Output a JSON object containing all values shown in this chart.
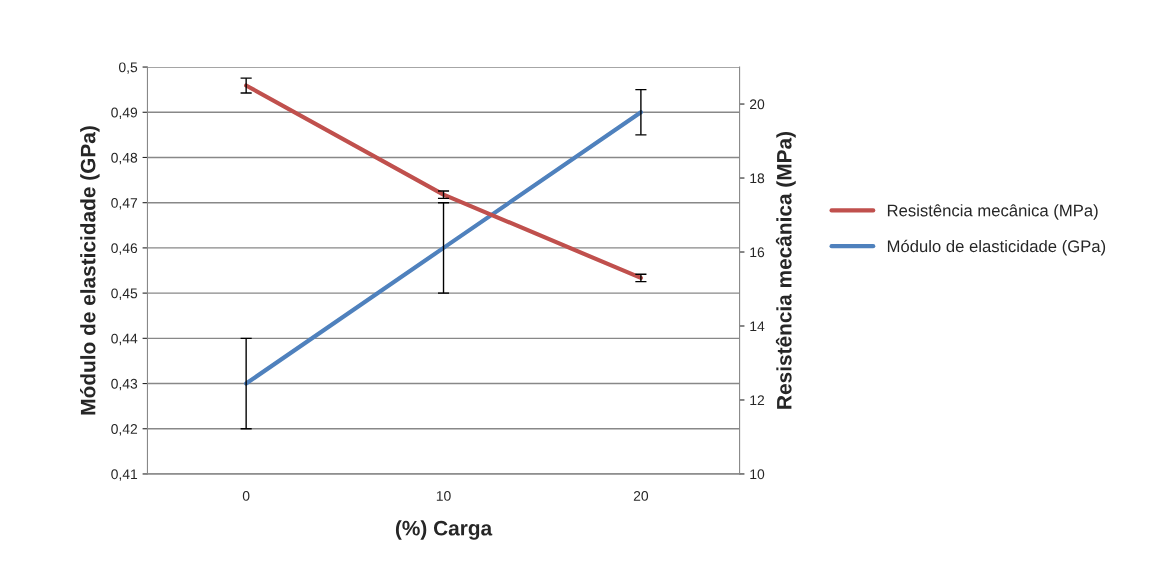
{
  "chart_data": {
    "type": "line",
    "xlabel": "(%) Carga",
    "ylabel": "Módulo de elasticidade (GPa)",
    "y2label": "Resistência mecânica (MPa)",
    "categories": [
      "0",
      "10",
      "20"
    ],
    "series": [
      {
        "name": "Resistência mecânica (MPa)",
        "color": "#c0504d",
        "axis": "y2",
        "values": [
          20.5,
          17.55,
          15.3
        ],
        "errors": [
          0.2,
          0.1,
          0.1
        ]
      },
      {
        "name": "Módulo de elasticidade (GPa)",
        "color": "#4f81bd",
        "values": [
          0.43,
          0.46,
          0.49
        ],
        "errors": [
          0.01,
          0.01,
          0.005
        ]
      }
    ],
    "ylim": [
      0.41,
      0.5
    ],
    "yticks": [
      {
        "value": 0.41,
        "label": "0,41"
      },
      {
        "value": 0.42,
        "label": "0,42"
      },
      {
        "value": 0.43,
        "label": "0,43"
      },
      {
        "value": 0.44,
        "label": "0,44"
      },
      {
        "value": 0.45,
        "label": "0,45"
      },
      {
        "value": 0.46,
        "label": "0,46"
      },
      {
        "value": 0.47,
        "label": "0,47"
      },
      {
        "value": 0.48,
        "label": "0,48"
      },
      {
        "value": 0.49,
        "label": "0,49"
      },
      {
        "value": 0.5,
        "label": "0,5"
      }
    ],
    "y2lim": [
      10,
      21
    ],
    "y2ticks": [
      10,
      12,
      14,
      16,
      18,
      20
    ],
    "grid": "y",
    "legend": "right",
    "marker": "none",
    "line_style": "solid"
  }
}
